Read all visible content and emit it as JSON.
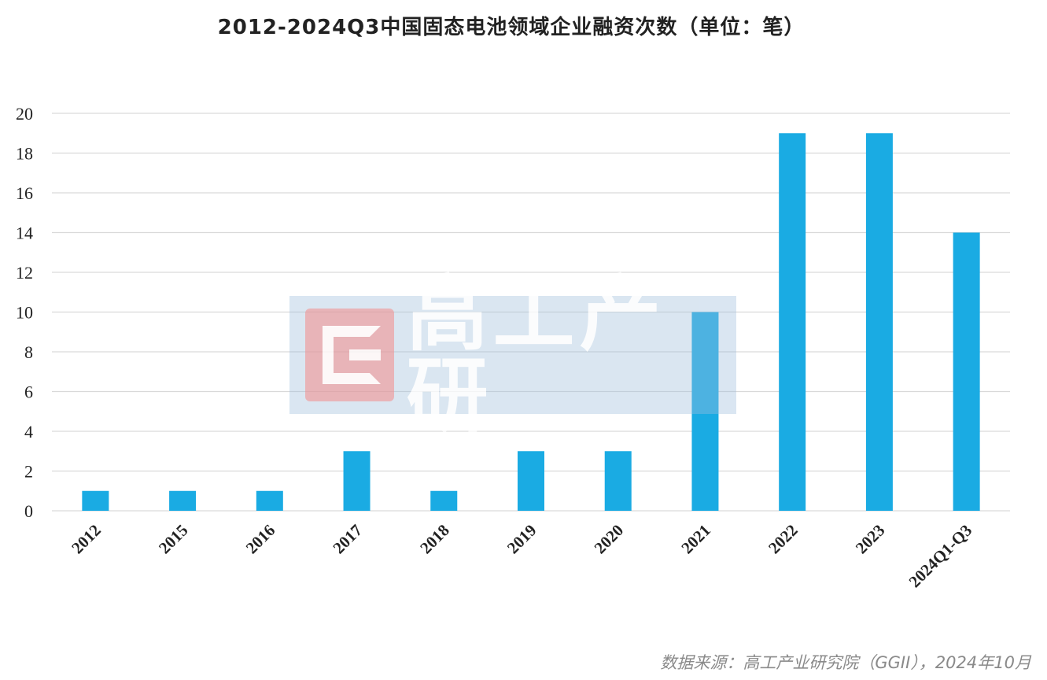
{
  "chart_data": {
    "type": "bar",
    "title": "2012-2024Q3中国固态电池领域企业融资次数（单位：笔）",
    "categories": [
      "2012",
      "2015",
      "2016",
      "2017",
      "2018",
      "2019",
      "2020",
      "2021",
      "2022",
      "2023",
      "2024Q1-Q3"
    ],
    "values": [
      1,
      1,
      1,
      3,
      1,
      3,
      3,
      10,
      19,
      19,
      14
    ],
    "ylim": [
      0,
      20
    ],
    "yticks": [
      0,
      2,
      4,
      6,
      8,
      10,
      12,
      14,
      16,
      18,
      20
    ],
    "ytick_labels": [
      "0",
      "2",
      "4",
      "6",
      "8",
      "10",
      "12",
      "14",
      "16",
      "18",
      "20"
    ],
    "xlabel": "",
    "ylabel": "",
    "grid": true,
    "legend": "none",
    "bar_color": "#1AABE3",
    "grid_color": "#D9D9D9"
  },
  "watermark": {
    "text": "高工产研"
  },
  "source": "数据来源：高工产业研究院（GGII），2024年10月"
}
